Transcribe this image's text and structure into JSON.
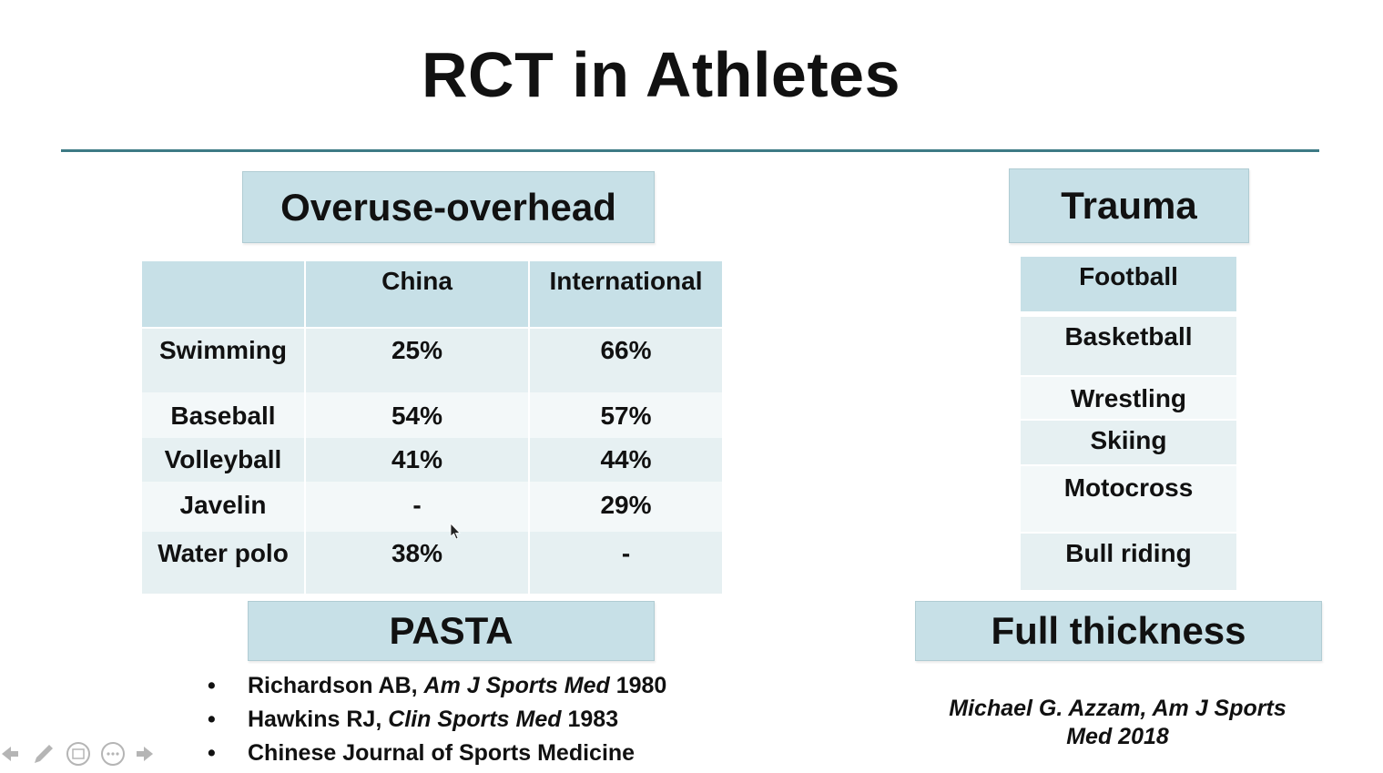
{
  "slide": {
    "title": "RCT in Athletes",
    "accent_color": "#3d7a85",
    "box_color": "#c7e0e7"
  },
  "overuse": {
    "heading": "Overuse-overhead",
    "columns": [
      "",
      "China",
      "International"
    ],
    "rows": [
      {
        "sport": "Swimming",
        "china": "25%",
        "international": "66%"
      },
      {
        "sport": "Baseball",
        "china": "54%",
        "international": "57%"
      },
      {
        "sport": "Volleyball",
        "china": "41%",
        "international": "44%"
      },
      {
        "sport": "Javelin",
        "china": "-",
        "international": "29%"
      },
      {
        "sport": "Water polo",
        "china": "38%",
        "international": "-"
      }
    ]
  },
  "trauma": {
    "heading": "Trauma",
    "items": [
      "Football",
      "Basketball",
      "Wrestling",
      "Skiing",
      "Motocross",
      "Bull riding"
    ]
  },
  "pasta": {
    "heading": "PASTA",
    "references": [
      {
        "author": "Richardson AB, ",
        "journal": "Am J Sports Med",
        "year": " 1980"
      },
      {
        "author": "Hawkins RJ, ",
        "journal": "Clin Sports Med",
        "year": " 1983"
      },
      {
        "author": "Chinese Journal of Sports Medicine",
        "journal": "",
        "year": ""
      }
    ]
  },
  "full_thickness": {
    "heading": "Full thickness",
    "citation_line1": "Michael G. Azzam, Am J Sports",
    "citation_line2": "Med 2018"
  },
  "toolbar": {
    "icons": [
      "back-arrow-icon",
      "pen-icon",
      "slides-icon",
      "more-icon",
      "forward-arrow-icon"
    ]
  }
}
